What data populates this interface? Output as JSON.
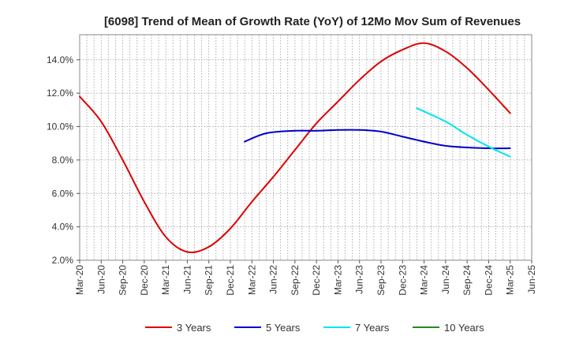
{
  "chart_data": {
    "type": "line",
    "title": "[6098]  Trend of Mean of Growth Rate (YoY) of 12Mo Mov Sum of Revenues",
    "xlabel": "",
    "ylabel": "",
    "ylim": [
      2.0,
      15.5
    ],
    "y_ticks": [
      2.0,
      4.0,
      6.0,
      8.0,
      10.0,
      12.0,
      14.0
    ],
    "y_tick_labels": [
      "2.0%",
      "4.0%",
      "6.0%",
      "8.0%",
      "10.0%",
      "12.0%",
      "14.0%"
    ],
    "x_tick_labels": [
      "Mar-20",
      "Jun-20",
      "Sep-20",
      "Dec-20",
      "Mar-21",
      "Jun-21",
      "Sep-21",
      "Dec-21",
      "Mar-22",
      "Jun-22",
      "Sep-22",
      "Dec-22",
      "Mar-23",
      "Jun-23",
      "Sep-23",
      "Dec-23",
      "Mar-24",
      "Jun-24",
      "Sep-24",
      "Dec-24",
      "Mar-25",
      "Jun-25"
    ],
    "grid": true,
    "legend_position": "bottom",
    "series": [
      {
        "name": "3 Years",
        "color": "#dd0000",
        "x": [
          0,
          3,
          6,
          9,
          12,
          15,
          18,
          21,
          24,
          27,
          30,
          33,
          36,
          39,
          42,
          45,
          48,
          51,
          54,
          57,
          60
        ],
        "values": [
          11.8,
          10.3,
          8.0,
          5.5,
          3.4,
          2.5,
          2.8,
          3.9,
          5.5,
          7.0,
          8.6,
          10.2,
          11.5,
          12.8,
          13.9,
          14.6,
          15.0,
          14.5,
          13.5,
          12.2,
          10.8
        ]
      },
      {
        "name": "5 Years",
        "color": "#0000cc",
        "x": [
          23,
          26,
          30,
          33,
          36,
          39,
          42,
          45,
          48,
          51,
          54,
          57,
          60
        ],
        "values": [
          9.1,
          9.6,
          9.75,
          9.75,
          9.8,
          9.8,
          9.7,
          9.4,
          9.1,
          8.85,
          8.75,
          8.7,
          8.7
        ]
      },
      {
        "name": "7 Years",
        "color": "#00e5ee",
        "x": [
          47,
          51,
          54,
          57,
          60
        ],
        "values": [
          11.1,
          10.3,
          9.5,
          8.8,
          8.2
        ]
      },
      {
        "name": "10 Years",
        "color": "#228b22",
        "x": [],
        "values": []
      }
    ]
  }
}
